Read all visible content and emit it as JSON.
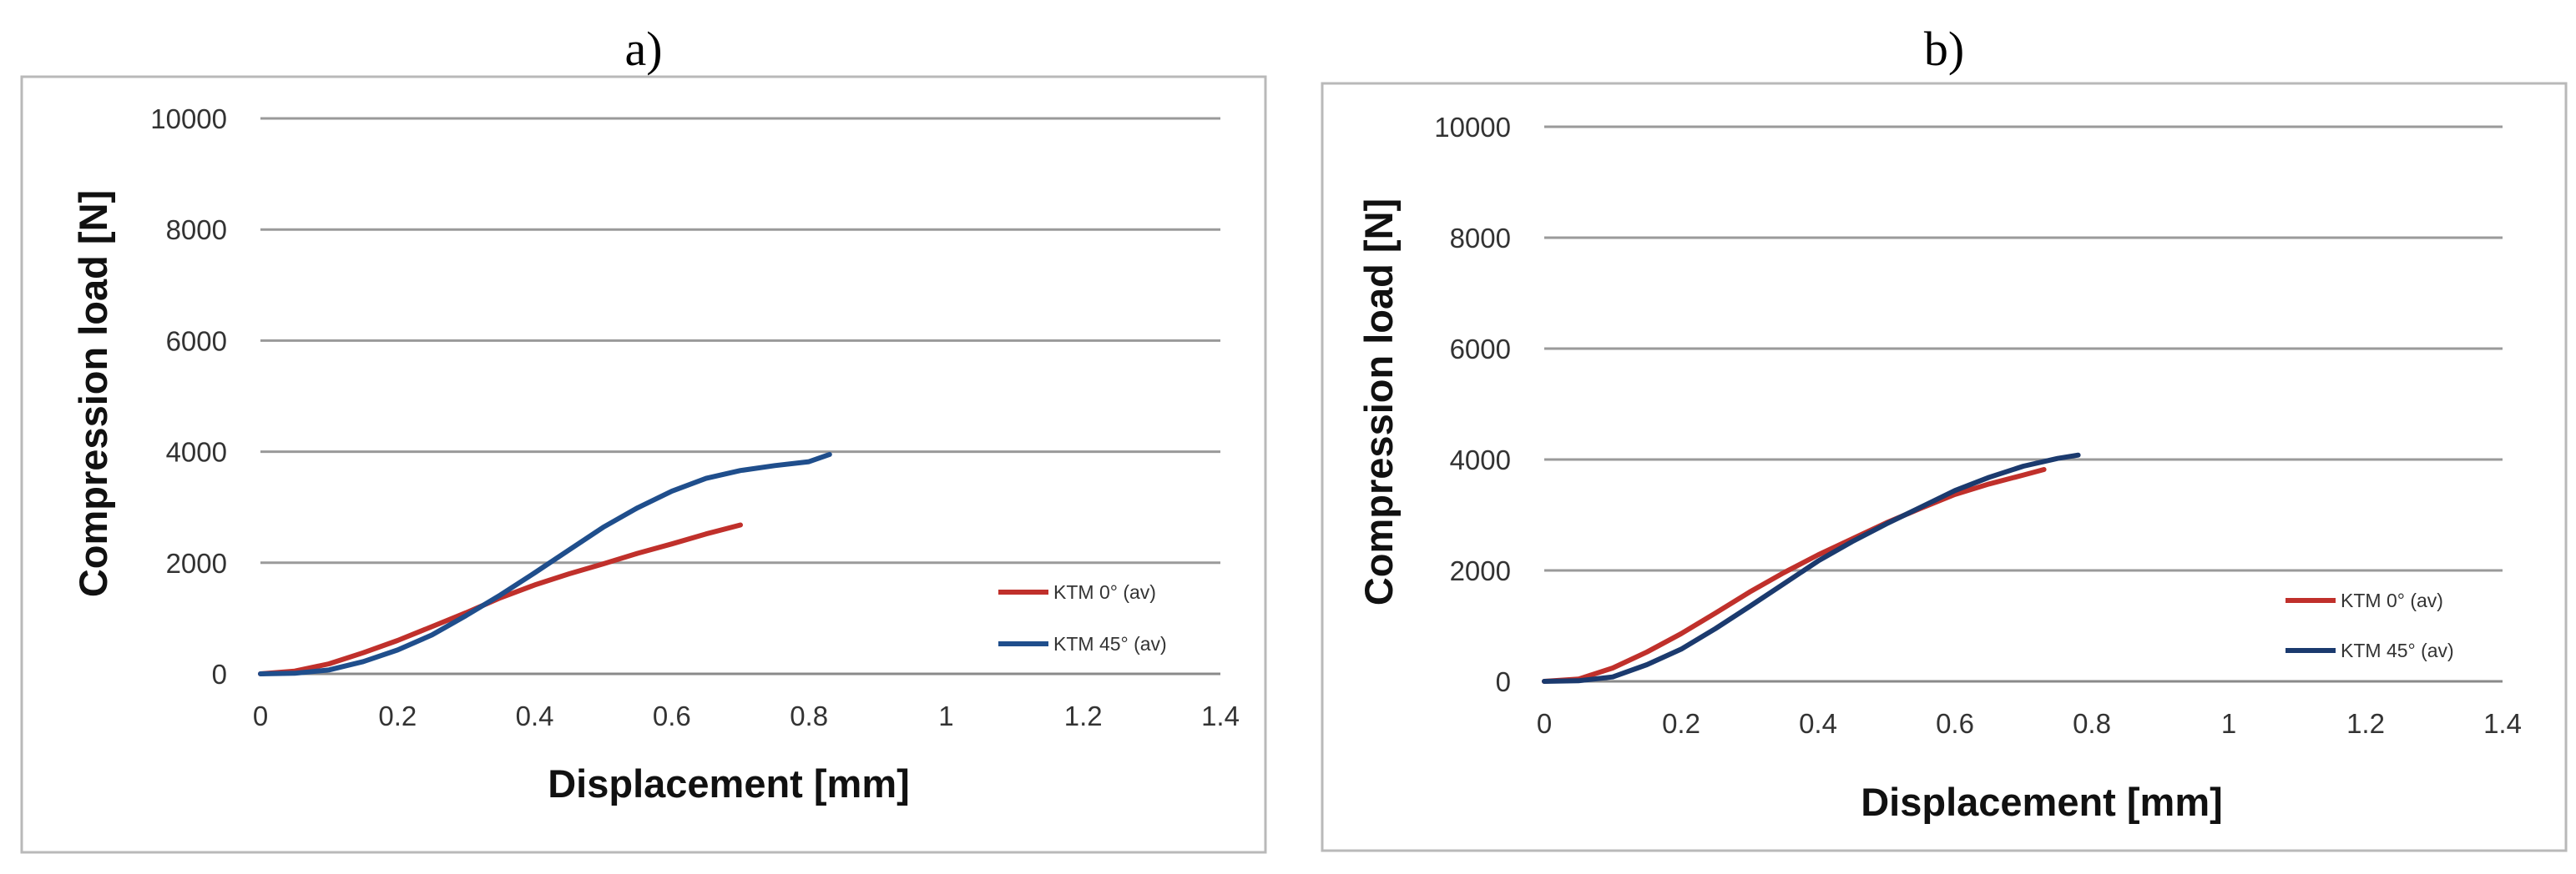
{
  "chart_data": [
    {
      "type": "line",
      "title": "a)",
      "xlabel": "Displacement [mm]",
      "ylabel": "Compression load [N]",
      "xlim": [
        0,
        1.4
      ],
      "ylim": [
        0,
        10000
      ],
      "x_ticks": [
        "0",
        "0.2",
        "0.4",
        "0.6",
        "0.8",
        "1",
        "1.2",
        "1.4"
      ],
      "y_ticks": [
        "0",
        "2000",
        "4000",
        "6000",
        "8000",
        "10000"
      ],
      "grid": "horizontal",
      "legend_position": "bottom-right",
      "series": [
        {
          "name": "KTM 0° (av)",
          "color": "#c0302b",
          "points": [
            [
              0,
              0
            ],
            [
              0.05,
              50
            ],
            [
              0.1,
              180
            ],
            [
              0.15,
              380
            ],
            [
              0.2,
              600
            ],
            [
              0.25,
              850
            ],
            [
              0.3,
              1100
            ],
            [
              0.35,
              1370
            ],
            [
              0.4,
              1600
            ],
            [
              0.45,
              1800
            ],
            [
              0.5,
              1980
            ],
            [
              0.55,
              2170
            ],
            [
              0.6,
              2340
            ],
            [
              0.65,
              2520
            ],
            [
              0.7,
              2680
            ]
          ]
        },
        {
          "name": "KTM 45° (av)",
          "color": "#1f4e8c",
          "points": [
            [
              0,
              0
            ],
            [
              0.05,
              10
            ],
            [
              0.1,
              70
            ],
            [
              0.15,
              220
            ],
            [
              0.2,
              430
            ],
            [
              0.25,
              700
            ],
            [
              0.3,
              1050
            ],
            [
              0.35,
              1420
            ],
            [
              0.4,
              1820
            ],
            [
              0.45,
              2230
            ],
            [
              0.5,
              2640
            ],
            [
              0.55,
              2990
            ],
            [
              0.6,
              3290
            ],
            [
              0.65,
              3520
            ],
            [
              0.7,
              3660
            ],
            [
              0.75,
              3750
            ],
            [
              0.8,
              3820
            ],
            [
              0.83,
              3950
            ]
          ]
        }
      ]
    },
    {
      "type": "line",
      "title": "b)",
      "xlabel": "Displacement [mm]",
      "ylabel": "Compression load [N]",
      "xlim": [
        0,
        1.4
      ],
      "ylim": [
        0,
        10000
      ],
      "x_ticks": [
        "0",
        "0.2",
        "0.4",
        "0.6",
        "0.8",
        "1",
        "1.2",
        "1.4"
      ],
      "y_ticks": [
        "0",
        "2000",
        "4000",
        "6000",
        "8000",
        "10000"
      ],
      "grid": "horizontal",
      "legend_position": "bottom-right",
      "series": [
        {
          "name": "KTM 0° (av)",
          "color": "#c0302b",
          "points": [
            [
              0,
              0
            ],
            [
              0.05,
              40
            ],
            [
              0.1,
              240
            ],
            [
              0.15,
              530
            ],
            [
              0.2,
              860
            ],
            [
              0.25,
              1230
            ],
            [
              0.3,
              1610
            ],
            [
              0.35,
              1960
            ],
            [
              0.4,
              2280
            ],
            [
              0.45,
              2570
            ],
            [
              0.5,
              2860
            ],
            [
              0.55,
              3120
            ],
            [
              0.6,
              3370
            ],
            [
              0.65,
              3560
            ],
            [
              0.7,
              3720
            ],
            [
              0.73,
              3820
            ]
          ]
        },
        {
          "name": "KTM 45° (av)",
          "color": "#1b3a6e",
          "points": [
            [
              0,
              0
            ],
            [
              0.05,
              10
            ],
            [
              0.1,
              80
            ],
            [
              0.15,
              300
            ],
            [
              0.2,
              580
            ],
            [
              0.25,
              950
            ],
            [
              0.3,
              1350
            ],
            [
              0.35,
              1760
            ],
            [
              0.4,
              2170
            ],
            [
              0.45,
              2520
            ],
            [
              0.5,
              2840
            ],
            [
              0.55,
              3140
            ],
            [
              0.6,
              3440
            ],
            [
              0.65,
              3680
            ],
            [
              0.7,
              3880
            ],
            [
              0.75,
              4020
            ],
            [
              0.78,
              4080
            ]
          ]
        }
      ]
    }
  ]
}
